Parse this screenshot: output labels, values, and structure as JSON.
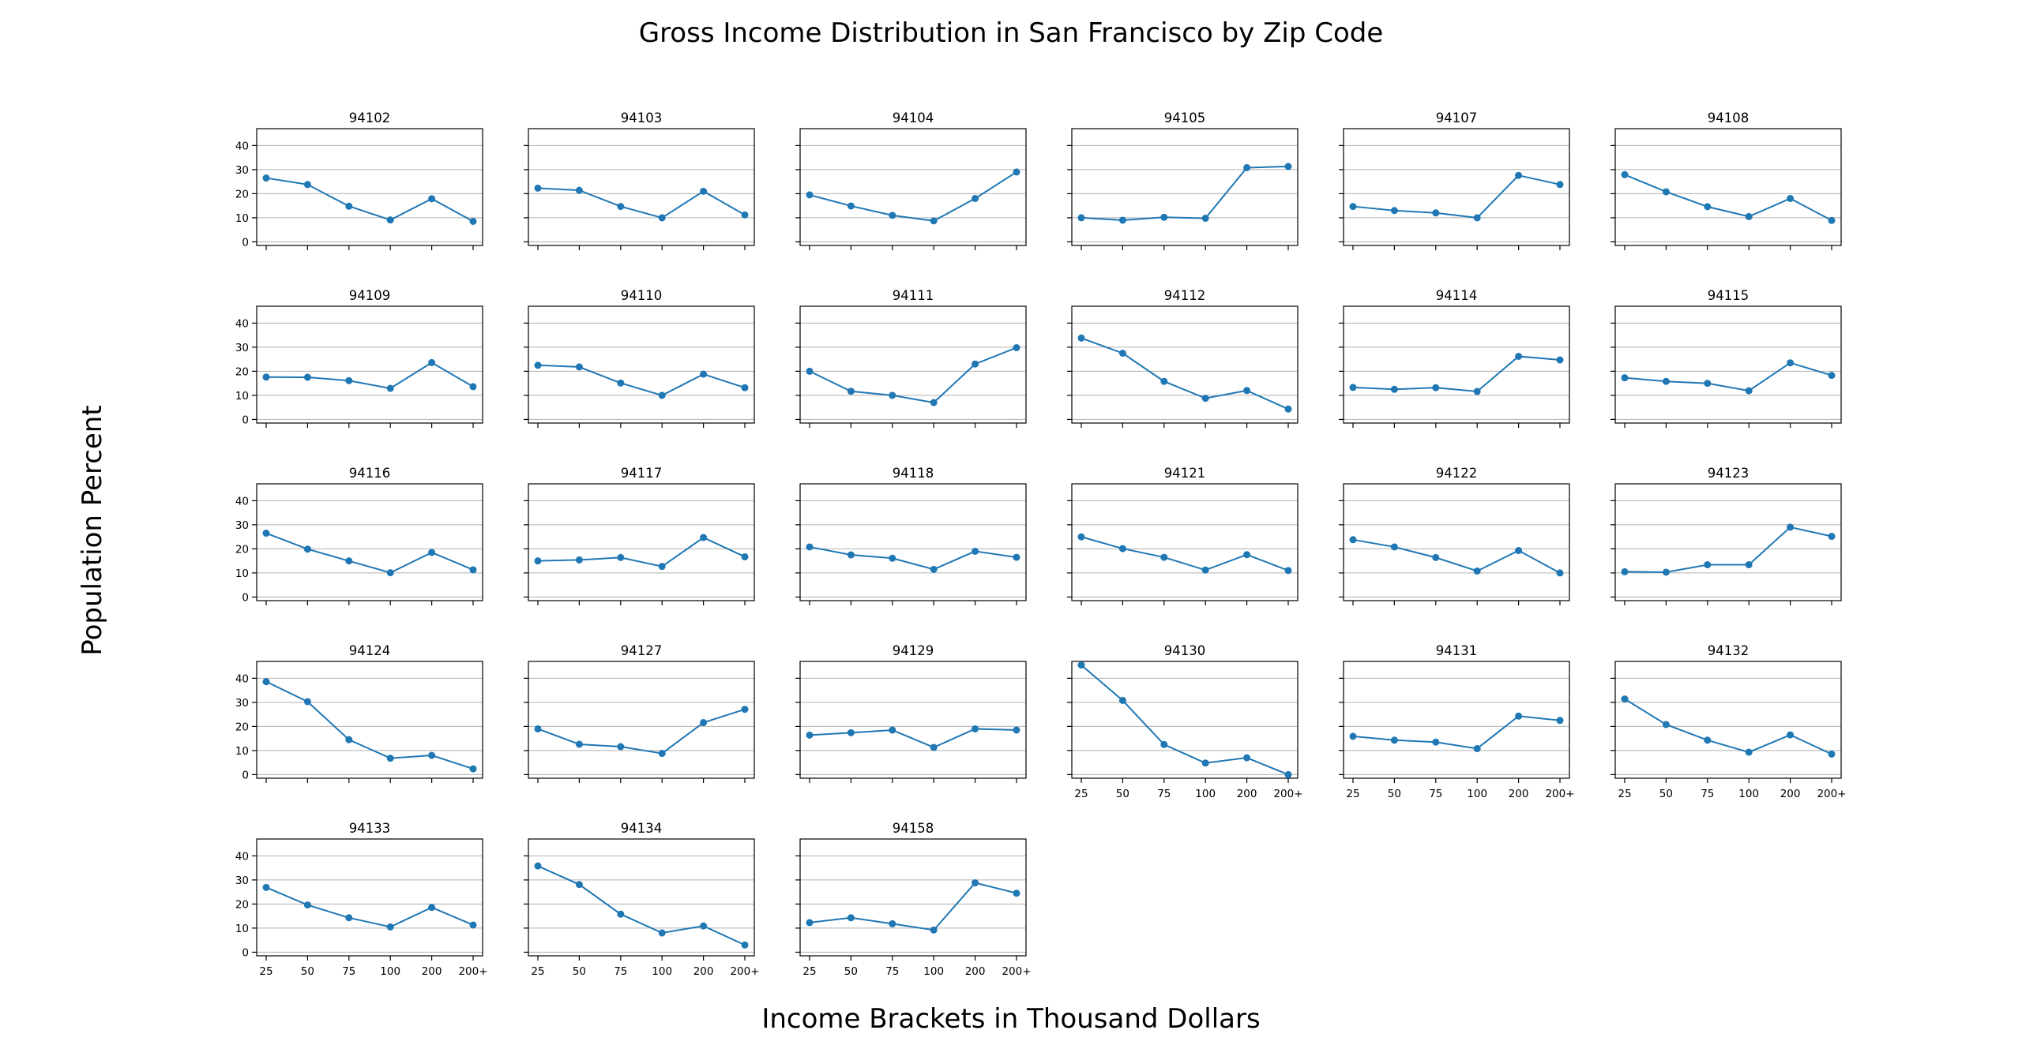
{
  "title": "Gross Income Distribution in San Francisco by Zip Code",
  "ylabel": "Population Percent",
  "xlabel": "Income Brackets in Thousand Dollars",
  "colors": {
    "series": "#1f77b4",
    "grid": "#b0b0b0"
  },
  "chart_data": {
    "type": "line",
    "layout": "small-multiples",
    "categories": [
      "25",
      "50",
      "75",
      "100",
      "200",
      "200+"
    ],
    "yticks": [
      0,
      10,
      20,
      30,
      40
    ],
    "ylim": [
      -1.5,
      47
    ],
    "grid": "horizontal",
    "series": [
      {
        "name": "94102",
        "values": [
          26.5,
          23.8,
          14.8,
          9.1,
          17.9,
          8.5
        ]
      },
      {
        "name": "94103",
        "values": [
          22.3,
          21.4,
          14.7,
          10.0,
          21.0,
          11.2
        ]
      },
      {
        "name": "94104",
        "values": [
          19.5,
          14.9,
          11.0,
          8.7,
          18.0,
          29.0
        ]
      },
      {
        "name": "94105",
        "values": [
          10.0,
          9.0,
          10.2,
          9.8,
          30.8,
          31.3
        ]
      },
      {
        "name": "94107",
        "values": [
          14.7,
          13.0,
          12.0,
          10.0,
          27.6,
          23.8
        ]
      },
      {
        "name": "94108",
        "values": [
          27.9,
          20.8,
          14.6,
          10.5,
          18.0,
          8.9
        ]
      },
      {
        "name": "94109",
        "values": [
          17.6,
          17.5,
          16.1,
          12.9,
          23.6,
          13.6
        ]
      },
      {
        "name": "94110",
        "values": [
          22.5,
          21.8,
          15.1,
          10.0,
          18.8,
          13.2
        ]
      },
      {
        "name": "94111",
        "values": [
          20.0,
          11.7,
          10.0,
          7.0,
          23.0,
          29.8
        ]
      },
      {
        "name": "94112",
        "values": [
          33.8,
          27.5,
          15.8,
          8.8,
          12.0,
          4.3
        ]
      },
      {
        "name": "94114",
        "values": [
          13.3,
          12.5,
          13.2,
          11.6,
          26.2,
          24.7
        ]
      },
      {
        "name": "94115",
        "values": [
          17.3,
          15.8,
          15.0,
          11.9,
          23.5,
          18.3
        ]
      },
      {
        "name": "94116",
        "values": [
          26.5,
          19.9,
          15.0,
          10.1,
          18.5,
          11.3
        ]
      },
      {
        "name": "94117",
        "values": [
          15.0,
          15.4,
          16.4,
          12.7,
          24.7,
          16.7
        ]
      },
      {
        "name": "94118",
        "values": [
          20.8,
          17.5,
          16.1,
          11.5,
          19.0,
          16.5
        ]
      },
      {
        "name": "94121",
        "values": [
          25.0,
          20.1,
          16.5,
          11.2,
          17.6,
          11.0
        ]
      },
      {
        "name": "94122",
        "values": [
          23.8,
          20.8,
          16.4,
          10.8,
          19.3,
          10.0
        ]
      },
      {
        "name": "94123",
        "values": [
          10.5,
          10.3,
          13.4,
          13.4,
          29.0,
          25.2
        ]
      },
      {
        "name": "94124",
        "values": [
          38.6,
          30.3,
          14.5,
          6.8,
          8.0,
          2.4
        ]
      },
      {
        "name": "94127",
        "values": [
          19.0,
          12.6,
          11.6,
          8.8,
          21.6,
          27.1
        ]
      },
      {
        "name": "94129",
        "values": [
          16.4,
          17.4,
          18.5,
          11.3,
          19.0,
          18.5
        ]
      },
      {
        "name": "94130",
        "values": [
          45.5,
          30.8,
          12.5,
          4.8,
          7.0,
          0.0
        ]
      },
      {
        "name": "94131",
        "values": [
          15.9,
          14.3,
          13.5,
          10.8,
          24.3,
          22.5
        ]
      },
      {
        "name": "94132",
        "values": [
          31.4,
          20.8,
          14.3,
          9.3,
          16.5,
          8.5
        ]
      },
      {
        "name": "94133",
        "values": [
          26.9,
          19.6,
          14.3,
          10.5,
          18.6,
          11.3
        ]
      },
      {
        "name": "94134",
        "values": [
          35.8,
          28.1,
          15.8,
          8.0,
          10.9,
          3.0
        ]
      },
      {
        "name": "94158",
        "values": [
          12.3,
          14.3,
          11.8,
          9.2,
          28.8,
          24.5
        ]
      }
    ]
  }
}
